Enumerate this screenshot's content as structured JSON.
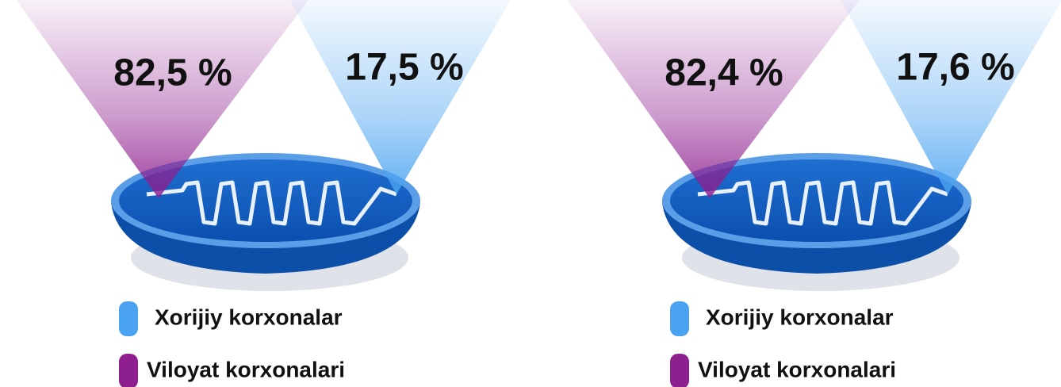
{
  "chart_data": [
    {
      "type": "cone",
      "categories": [
        "Xorijiy korxonalar",
        "Viloyat korxonalari"
      ],
      "values": [
        17.5,
        82.5
      ],
      "value_labels": [
        "17,5 %",
        "82,5 %"
      ],
      "colors": [
        "#4aa3f0",
        "#8e1f8e"
      ]
    },
    {
      "type": "cone",
      "categories": [
        "Xorijiy korxonalar",
        "Viloyat korxonalari"
      ],
      "values": [
        17.6,
        82.4
      ],
      "value_labels": [
        "17,6 %",
        "82,4 %"
      ],
      "colors": [
        "#4aa3f0",
        "#8e1f8e"
      ]
    }
  ]
}
